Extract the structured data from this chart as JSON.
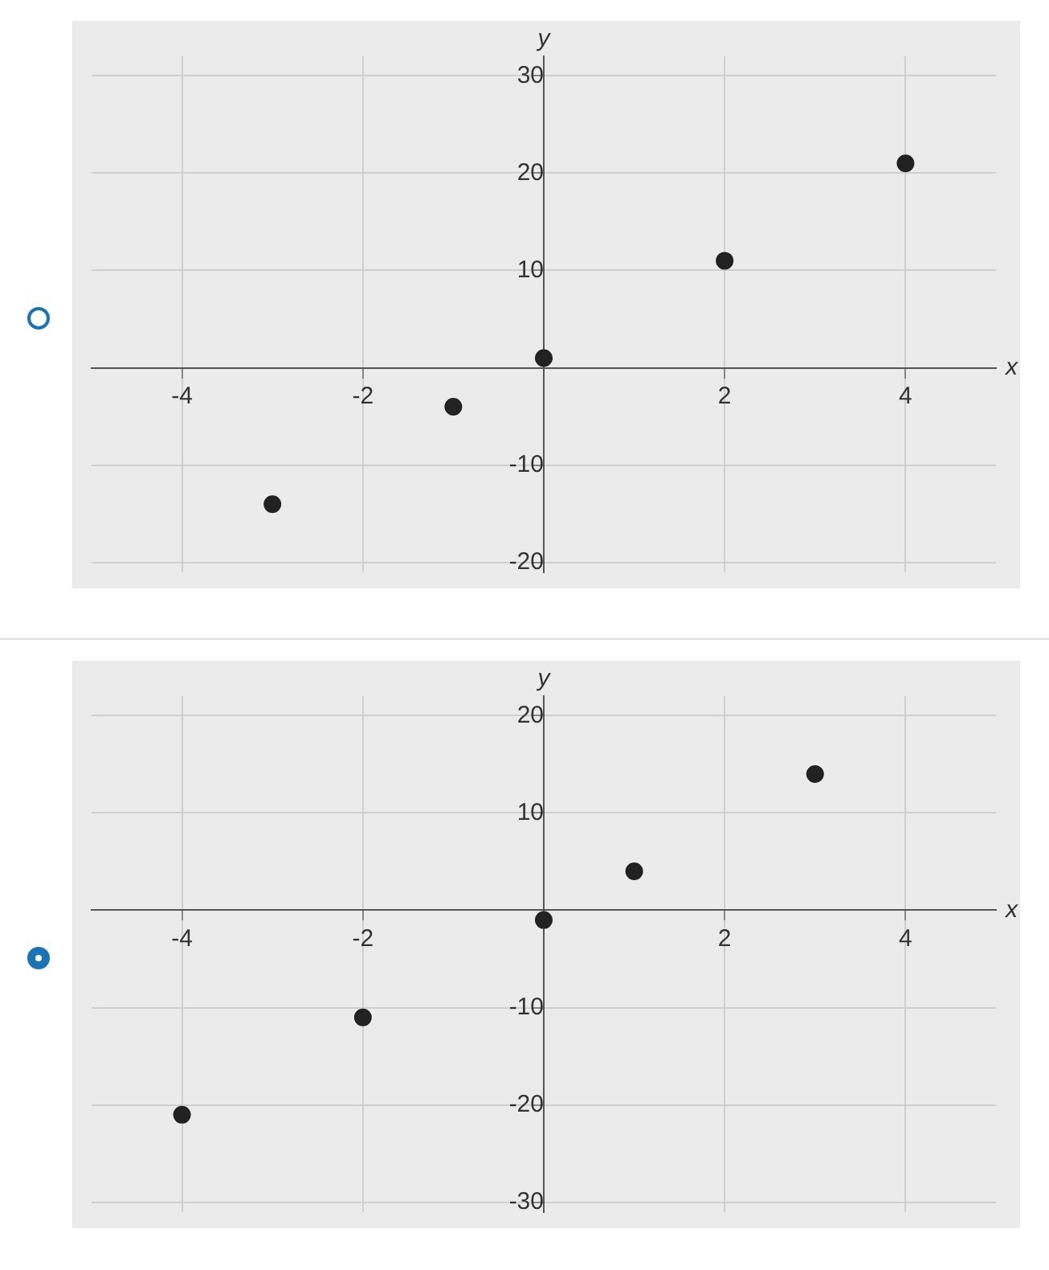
{
  "chart_data": [
    {
      "type": "scatter",
      "xlabel": "x",
      "ylabel": "y",
      "x": [
        -3,
        -1,
        0,
        2,
        4
      ],
      "values": [
        -14,
        -4,
        1,
        11,
        21
      ],
      "color": "#222222",
      "marker": "circle",
      "xlim": [
        -5,
        5
      ],
      "ylim": [
        -21,
        32
      ],
      "xticks": [
        -4,
        -2,
        2,
        4
      ],
      "yticks": [
        -20,
        -10,
        10,
        20,
        30
      ],
      "grid": true
    },
    {
      "type": "scatter",
      "xlabel": "x",
      "ylabel": "y",
      "x": [
        -4,
        -2,
        0,
        1,
        3
      ],
      "values": [
        -21,
        -11,
        -1,
        4,
        14
      ],
      "color": "#222222",
      "marker": "circle",
      "xlim": [
        -5,
        5
      ],
      "ylim": [
        -31,
        22
      ],
      "xticks": [
        -4,
        -2,
        2,
        4
      ],
      "yticks": [
        -30,
        -20,
        -10,
        10,
        20
      ],
      "grid": true
    }
  ]
}
